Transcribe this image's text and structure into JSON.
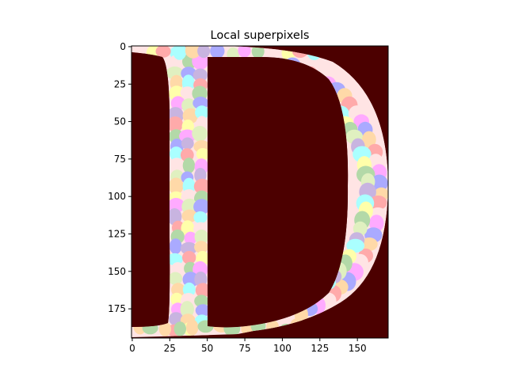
{
  "chart_data": {
    "type": "heatmap",
    "title": "Local superpixels",
    "xlabel": "",
    "ylabel": "",
    "image_width": 171,
    "image_height": 195,
    "xlim": [
      -0.5,
      170.5
    ],
    "ylim": [
      194.5,
      -0.5
    ],
    "x_ticks": [
      0,
      25,
      50,
      75,
      100,
      125,
      150
    ],
    "y_ticks": [
      0,
      25,
      50,
      75,
      100,
      125,
      150,
      175
    ],
    "grid": false,
    "background_color": "#4c0000",
    "letter": "D",
    "superpixel_palette": [
      "#ffe4e4",
      "#aaffff",
      "#aaaaff",
      "#b3d9a8",
      "#ffaaaa",
      "#c8b4e0",
      "#ffaaff",
      "#ffffaa",
      "#ffd9a8",
      "#e0f0c0"
    ]
  }
}
